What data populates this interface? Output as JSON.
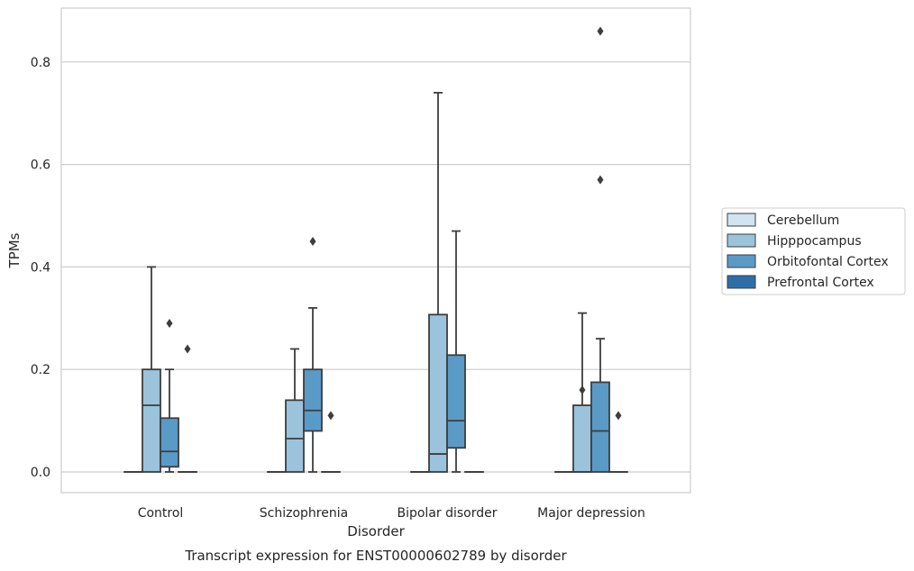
{
  "chart_data": {
    "type": "box",
    "title": "Transcript expression for ENST00000602789 by disorder",
    "xlabel": "Disorder",
    "ylabel": "TPMs",
    "ylim": [
      -0.042,
      0.905
    ],
    "yticks": [
      0.0,
      0.2,
      0.4,
      0.6,
      0.8
    ],
    "ytick_labels": [
      "0.0",
      "0.2",
      "0.4",
      "0.6",
      "0.8"
    ],
    "grid": "horizontal",
    "legend_position": "right",
    "categories": [
      "Control",
      "Schizophrenia",
      "Bipolar disorder",
      "Major depression"
    ],
    "series": [
      {
        "name": "Cerebellum",
        "color": "#d2e3f2",
        "boxes": [
          {
            "whislo": 0,
            "q1": 0,
            "med": 0,
            "q3": 0,
            "whishi": 0,
            "fliers": []
          },
          {
            "whislo": 0,
            "q1": 0,
            "med": 0,
            "q3": 0,
            "whishi": 0,
            "fliers": []
          },
          {
            "whislo": 0,
            "q1": 0,
            "med": 0,
            "q3": 0,
            "whishi": 0,
            "fliers": []
          },
          {
            "whislo": 0,
            "q1": 0,
            "med": 0,
            "q3": 0,
            "whishi": 0,
            "fliers": []
          }
        ]
      },
      {
        "name": "Hipppocampus",
        "color": "#9bc3dc",
        "boxes": [
          {
            "whislo": 0,
            "q1": 0,
            "med": 0.13,
            "q3": 0.2,
            "whishi": 0.4,
            "fliers": []
          },
          {
            "whislo": 0,
            "q1": 0,
            "med": 0.065,
            "q3": 0.14,
            "whishi": 0.24,
            "fliers": []
          },
          {
            "whislo": 0,
            "q1": 0,
            "med": 0.035,
            "q3": 0.307,
            "whishi": 0.74,
            "fliers": []
          },
          {
            "whislo": 0,
            "q1": 0,
            "med": 0,
            "q3": 0.13,
            "whishi": 0.31,
            "fliers": [
              0.16
            ]
          }
        ]
      },
      {
        "name": "Orbitofontal Cortex",
        "color": "#5a9ac7",
        "boxes": [
          {
            "whislo": 0,
            "q1": 0.01,
            "med": 0.04,
            "q3": 0.105,
            "whishi": 0.2,
            "fliers": [
              0.29
            ]
          },
          {
            "whislo": 0,
            "q1": 0.08,
            "med": 0.12,
            "q3": 0.2,
            "whishi": 0.32,
            "fliers": [
              0.45
            ]
          },
          {
            "whislo": 0,
            "q1": 0.047,
            "med": 0.1,
            "q3": 0.228,
            "whishi": 0.47,
            "fliers": []
          },
          {
            "whislo": 0,
            "q1": 0,
            "med": 0.08,
            "q3": 0.175,
            "whishi": 0.26,
            "fliers": [
              0.86,
              0.57
            ]
          }
        ]
      },
      {
        "name": "Prefrontal Cortex",
        "color": "#2c6fa8",
        "boxes": [
          {
            "whislo": 0,
            "q1": 0,
            "med": 0,
            "q3": 0,
            "whishi": 0,
            "fliers": [
              0.24
            ]
          },
          {
            "whislo": 0,
            "q1": 0,
            "med": 0,
            "q3": 0,
            "whishi": 0,
            "fliers": [
              0.11
            ]
          },
          {
            "whislo": 0,
            "q1": 0,
            "med": 0,
            "q3": 0,
            "whishi": 0,
            "fliers": []
          },
          {
            "whislo": 0,
            "q1": 0,
            "med": 0,
            "q3": 0,
            "whishi": 0,
            "fliers": [
              0.11
            ]
          }
        ]
      }
    ]
  }
}
